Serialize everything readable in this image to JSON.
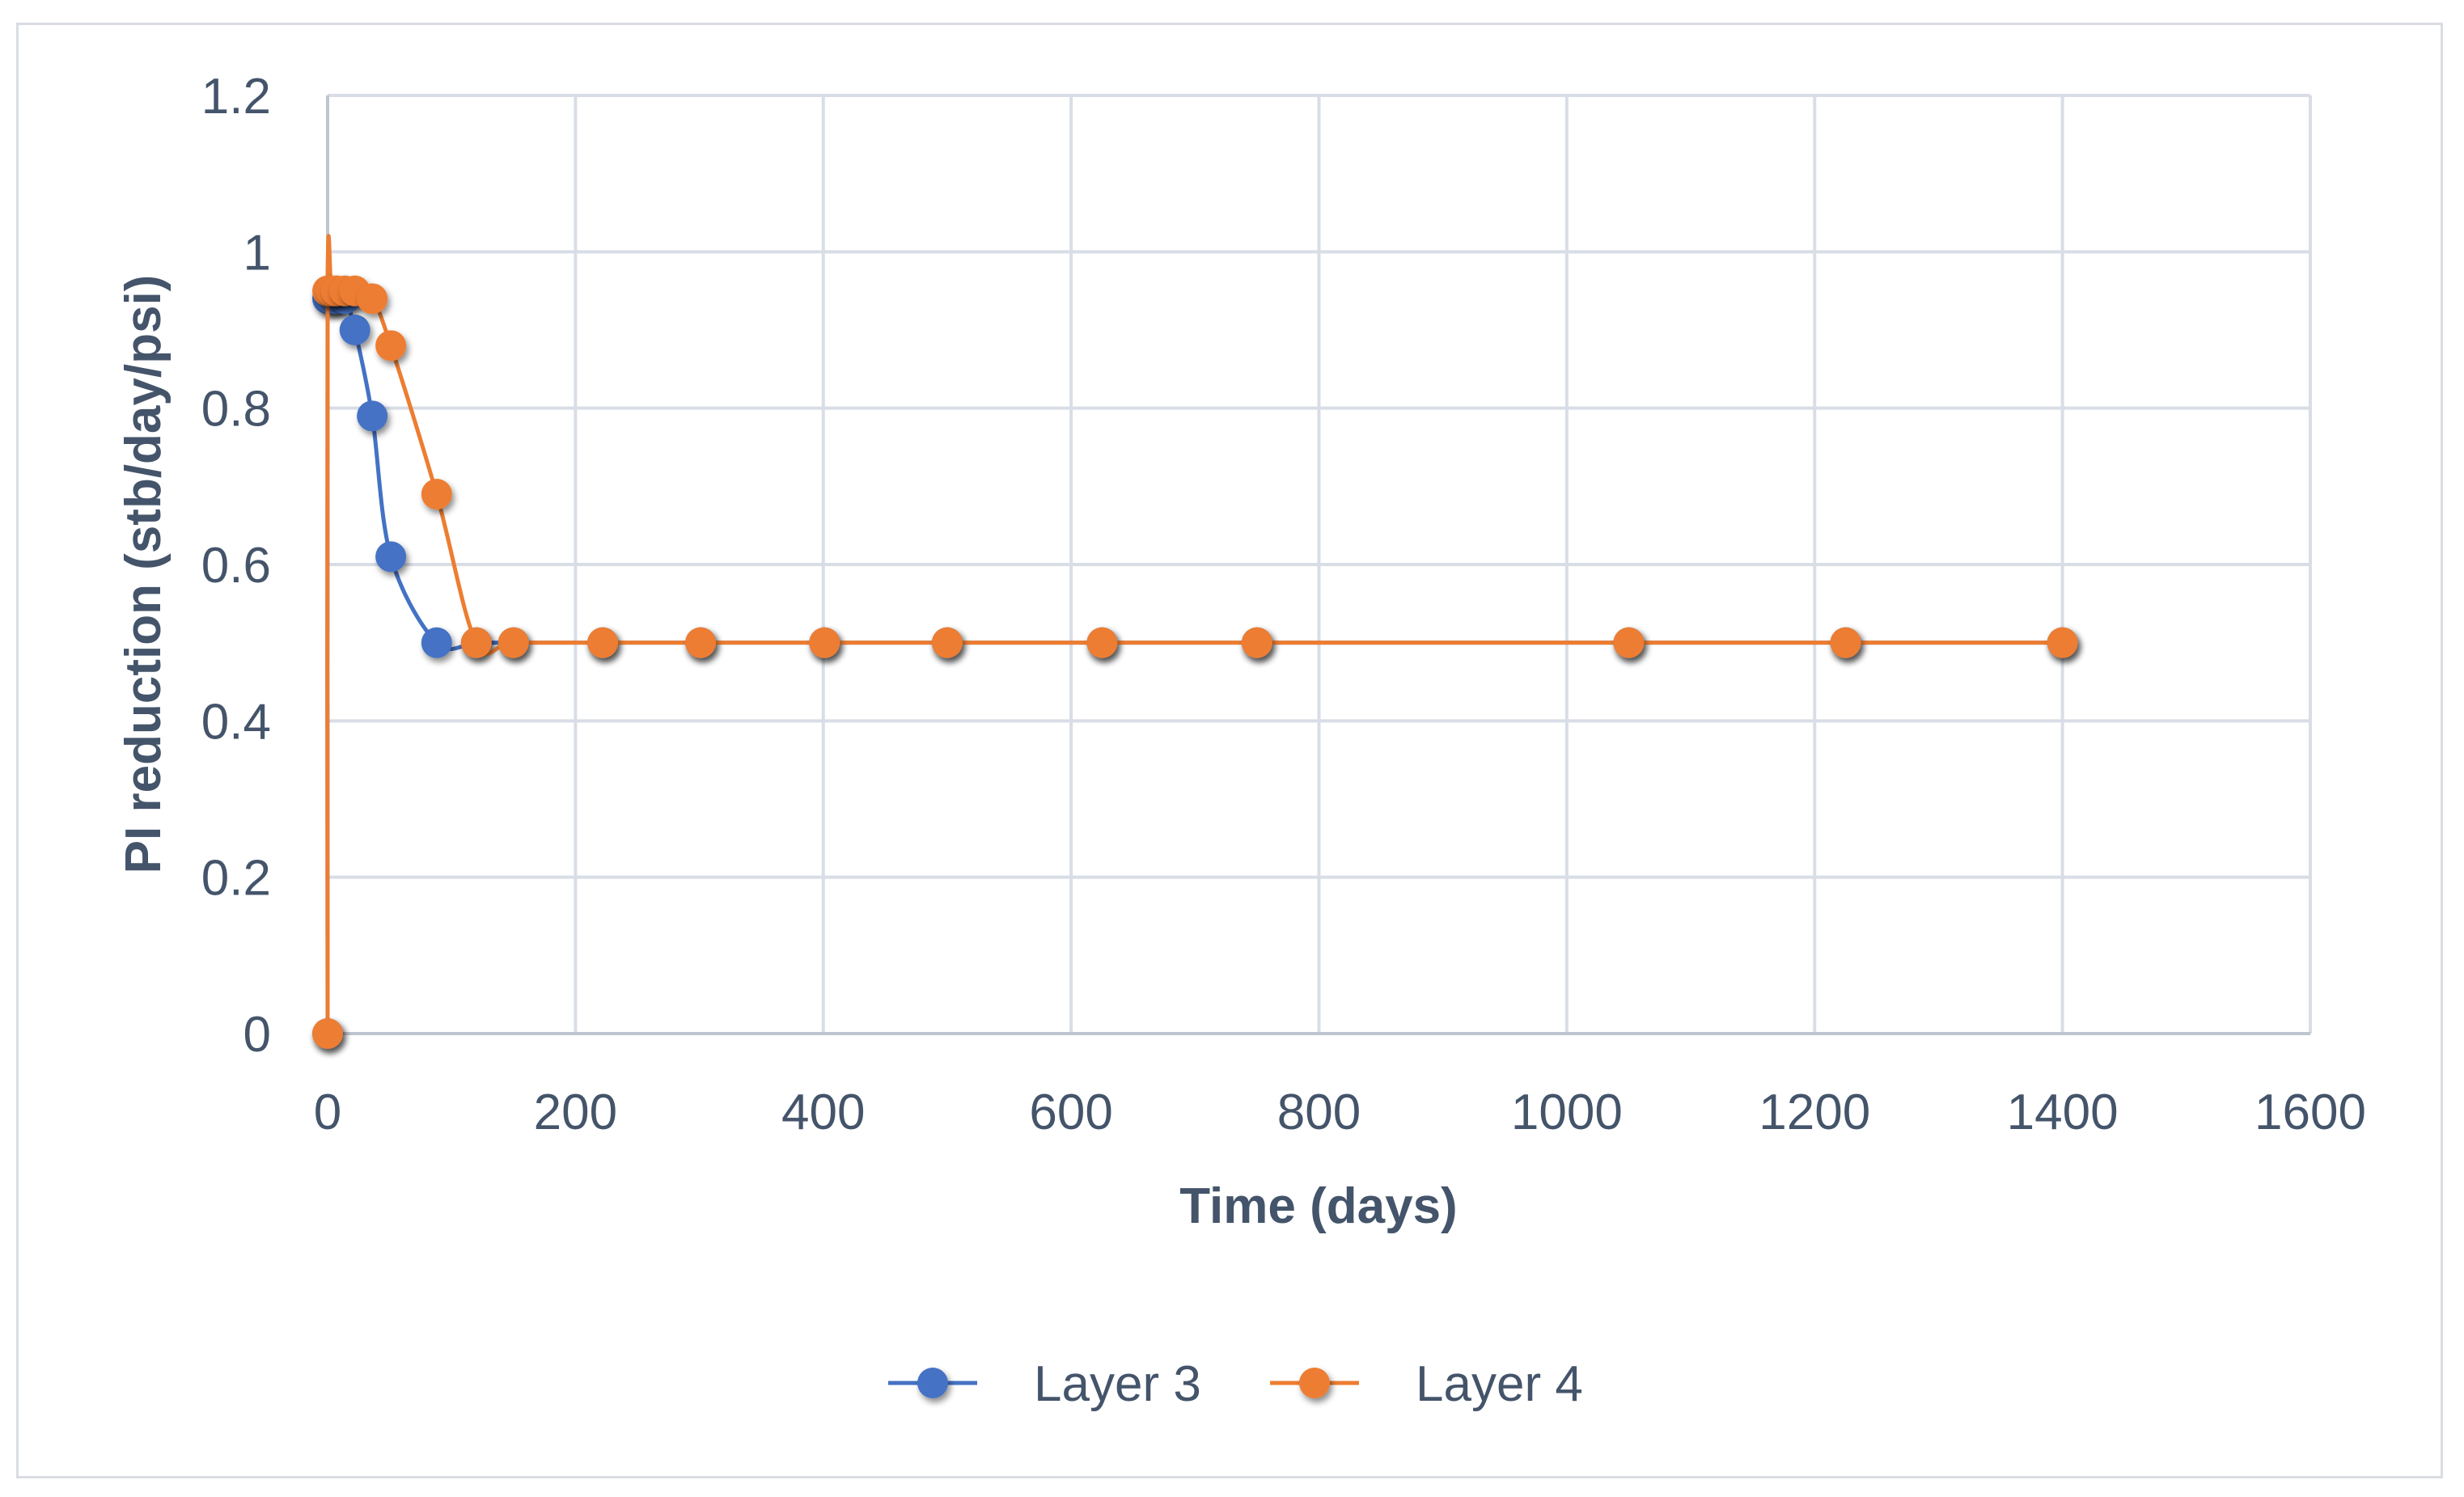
{
  "chart_data": {
    "type": "line",
    "xlabel": "Time (days)",
    "ylabel": "PI reduction (stb/day/psi)",
    "xlim": [
      0,
      1600
    ],
    "ylim": [
      0,
      1.2
    ],
    "x_ticks": [
      0,
      200,
      400,
      600,
      800,
      1000,
      1200,
      1400,
      1600
    ],
    "y_ticks": [
      0,
      0.2,
      0.4,
      0.6,
      0.8,
      1,
      1.2
    ],
    "x_tick_labels": [
      "0",
      "200",
      "400",
      "600",
      "800",
      "1000",
      "1200",
      "1400",
      "1600"
    ],
    "y_tick_labels": [
      "0",
      "0.2",
      "0.4",
      "0.6",
      "0.8",
      "1",
      "1.2"
    ],
    "grid": true,
    "legend_position": "bottom",
    "series": [
      {
        "name": "Layer 3",
        "color": "#4472c4",
        "x": [
          0,
          0,
          3,
          7,
          14,
          22,
          36,
          51,
          88,
          120,
          150,
          222,
          301,
          401,
          500,
          625,
          750,
          1050,
          1225,
          1400
        ],
        "y": [
          0,
          0.94,
          0.94,
          0.94,
          0.94,
          0.9,
          0.79,
          0.61,
          0.5,
          0.5,
          0.5,
          0.5,
          0.5,
          0.5,
          0.5,
          0.5,
          0.5,
          0.5,
          0.5,
          0.5
        ]
      },
      {
        "name": "Layer 4",
        "color": "#ed7d31",
        "x": [
          0,
          0,
          3,
          7,
          14,
          22,
          36,
          51,
          88,
          120,
          150,
          222,
          301,
          401,
          500,
          625,
          750,
          1050,
          1225,
          1400
        ],
        "y": [
          0,
          0.95,
          0.95,
          0.95,
          0.95,
          0.95,
          0.94,
          0.88,
          0.69,
          0.5,
          0.5,
          0.5,
          0.5,
          0.5,
          0.5,
          0.5,
          0.5,
          0.5,
          0.5,
          0.5
        ]
      }
    ]
  }
}
